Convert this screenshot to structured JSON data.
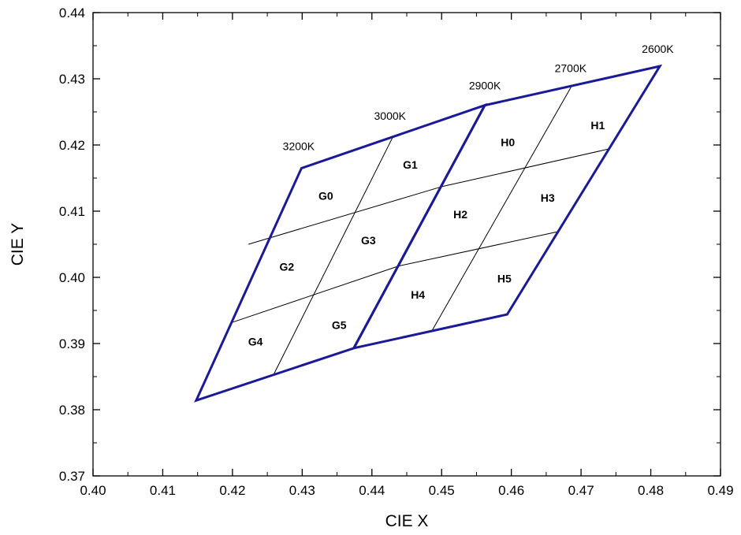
{
  "chart_data": {
    "type": "diagram",
    "xlabel": "CIE X",
    "ylabel": "CIE Y",
    "xlim": [
      0.4,
      0.49
    ],
    "ylim": [
      0.37,
      0.44
    ],
    "x_ticks": [
      0.4,
      0.41,
      0.42,
      0.43,
      0.44,
      0.45,
      0.46,
      0.47,
      0.48,
      0.49
    ],
    "x_tick_labels": [
      "0.40",
      "0.41",
      "0.42",
      "0.43",
      "0.44",
      "0.45",
      "0.46",
      "0.47",
      "0.48",
      "0.49"
    ],
    "y_ticks": [
      0.37,
      0.38,
      0.39,
      0.4,
      0.41,
      0.42,
      0.43,
      0.44
    ],
    "y_tick_labels": [
      "0.37",
      "0.38",
      "0.39",
      "0.40",
      "0.41",
      "0.42",
      "0.43",
      "0.44"
    ],
    "grid": false,
    "colors": {
      "outline": "#1a1a99",
      "inner_line": "#000000",
      "axis": "#000000"
    },
    "outline_G": [
      [
        0.4148,
        0.3814
      ],
      [
        0.4299,
        0.4165
      ],
      [
        0.4562,
        0.426
      ],
      [
        0.4374,
        0.3893
      ]
    ],
    "outline_H": [
      [
        0.4374,
        0.3893
      ],
      [
        0.4562,
        0.426
      ],
      [
        0.4813,
        0.4319
      ],
      [
        0.4594,
        0.3944
      ]
    ],
    "inner_lines": [
      [
        [
          0.4259,
          0.3853
        ],
        [
          0.443,
          0.4212
        ]
      ],
      [
        [
          0.4486,
          0.3919
        ],
        [
          0.4687,
          0.429
        ]
      ],
      [
        [
          0.4223,
          0.405
        ],
        [
          0.45,
          0.4137
        ]
      ],
      [
        [
          0.45,
          0.4137
        ],
        [
          0.474,
          0.4194
        ]
      ],
      [
        [
          0.4197,
          0.3931
        ],
        [
          0.4438,
          0.4017
        ]
      ],
      [
        [
          0.4438,
          0.4017
        ],
        [
          0.4667,
          0.4069
        ]
      ]
    ],
    "cct_labels": [
      {
        "text": "3200K",
        "x": 0.4295,
        "y": 0.4192
      },
      {
        "text": "3000K",
        "x": 0.4426,
        "y": 0.4238
      },
      {
        "text": "2900K",
        "x": 0.4562,
        "y": 0.4284
      },
      {
        "text": "2700K",
        "x": 0.4685,
        "y": 0.431
      },
      {
        "text": "2600K",
        "x": 0.481,
        "y": 0.4339
      }
    ],
    "bin_labels": [
      {
        "text": "G0",
        "x": 0.4334,
        "y": 0.4117
      },
      {
        "text": "G1",
        "x": 0.4455,
        "y": 0.4164
      },
      {
        "text": "G2",
        "x": 0.4278,
        "y": 0.401
      },
      {
        "text": "G3",
        "x": 0.4395,
        "y": 0.405
      },
      {
        "text": "G4",
        "x": 0.4233,
        "y": 0.3897
      },
      {
        "text": "G5",
        "x": 0.4353,
        "y": 0.3922
      },
      {
        "text": "H0",
        "x": 0.4595,
        "y": 0.4198
      },
      {
        "text": "H1",
        "x": 0.4724,
        "y": 0.4224
      },
      {
        "text": "H2",
        "x": 0.4527,
        "y": 0.4089
      },
      {
        "text": "H3",
        "x": 0.4652,
        "y": 0.4114
      },
      {
        "text": "H4",
        "x": 0.4466,
        "y": 0.3968
      },
      {
        "text": "H5",
        "x": 0.459,
        "y": 0.3992
      }
    ]
  }
}
